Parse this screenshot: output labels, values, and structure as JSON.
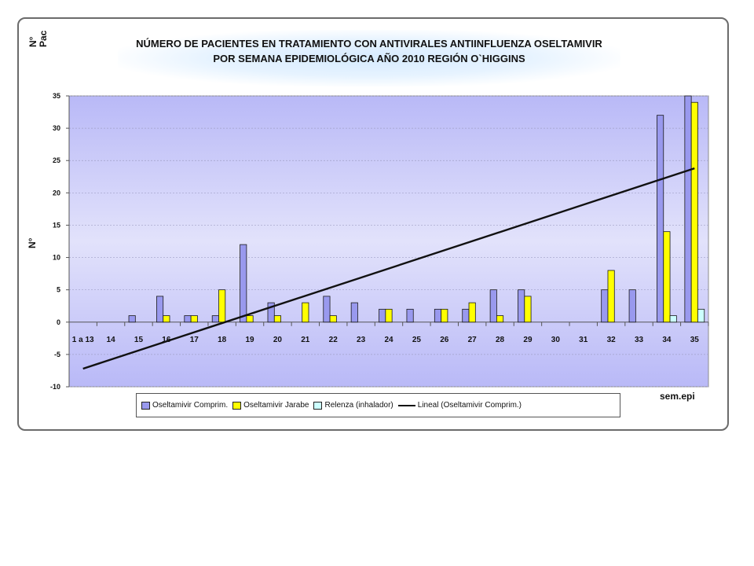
{
  "chart_data": {
    "type": "bar",
    "title_line1": "NÚMERO DE PACIENTES EN TRATAMIENTO CON ANTIVIRALES ANTIINFLUENZA OSELTAMIVIR",
    "title_line2": "POR SEMANA EPIDEMIOLÓGICA AÑO 2010  REGIÓN O`HIGGINS",
    "ylabel_top": "N°\nPac",
    "ylabel": "N°",
    "xlabel": "sem.epi",
    "ylim": [
      -10,
      35
    ],
    "yticks": [
      "35",
      "30",
      "25",
      "20",
      "15",
      "10",
      "5",
      "0",
      "-5",
      "-10"
    ],
    "categories": [
      "1 a 13",
      "14",
      "15",
      "16",
      "17",
      "18",
      "19",
      "20",
      "21",
      "22",
      "23",
      "24",
      "25",
      "26",
      "27",
      "28",
      "29",
      "30",
      "31",
      "32",
      "33",
      "34",
      "35"
    ],
    "series": [
      {
        "name": "Oseltamivir Comprim.",
        "color": "#9999ee",
        "values": [
          0,
          0,
          1,
          4,
          1,
          1,
          12,
          3,
          0,
          4,
          3,
          2,
          2,
          2,
          2,
          5,
          5,
          0,
          0,
          5,
          5,
          32,
          35
        ]
      },
      {
        "name": "Oseltamivir Jarabe",
        "color": "#ffff00",
        "values": [
          0,
          0,
          0,
          1,
          1,
          5,
          1,
          1,
          3,
          1,
          0,
          2,
          0,
          2,
          3,
          1,
          4,
          0,
          0,
          8,
          0,
          14,
          34
        ]
      },
      {
        "name": "Relenza  (inhalador)",
        "color": "#ccffff",
        "values": [
          0,
          0,
          0,
          0,
          0,
          0,
          0,
          0,
          0,
          0,
          0,
          0,
          0,
          0,
          0,
          0,
          0,
          0,
          0,
          0,
          0,
          1,
          2
        ]
      }
    ],
    "trendline": {
      "name": "Lineal (Oseltamivir Comprim.)",
      "color": "#111111",
      "start": -7.2,
      "end": 23.8
    },
    "grid": true,
    "legend": "bottom"
  }
}
